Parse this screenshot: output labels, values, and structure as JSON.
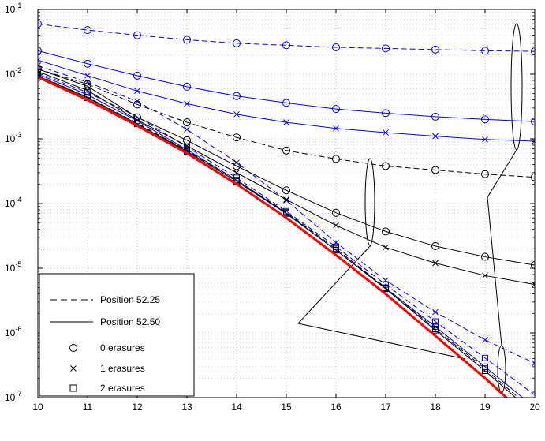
{
  "chart_data": {
    "type": "line",
    "title": "",
    "xlabel": "",
    "ylabel": "",
    "xlim": [
      10,
      20
    ],
    "ylim": [
      1e-07,
      0.1
    ],
    "yscale": "log",
    "grid": true,
    "x": [
      10,
      11,
      12,
      13,
      14,
      15,
      16,
      17,
      18,
      19,
      20
    ],
    "xticks": [
      "10",
      "11",
      "12",
      "13",
      "14",
      "15",
      "16",
      "17",
      "18",
      "19",
      "20"
    ],
    "yticks": [
      {
        "base": "10",
        "exp": "-7",
        "value": 1e-07
      },
      {
        "base": "10",
        "exp": "-6",
        "value": 1e-06
      },
      {
        "base": "10",
        "exp": "-5",
        "value": 1e-05
      },
      {
        "base": "10",
        "exp": "-4",
        "value": 0.0001
      },
      {
        "base": "10",
        "exp": "-3",
        "value": 0.001
      },
      {
        "base": "10",
        "exp": "-2",
        "value": 0.01
      },
      {
        "base": "10",
        "exp": "-1",
        "value": 0.1
      }
    ],
    "legend": {
      "placement": "bottom-left",
      "entries": [
        {
          "label": "Position 52.25",
          "line": "dashed"
        },
        {
          "label": "Position 52.50",
          "line": "solid"
        },
        {
          "label": "0 erasures",
          "marker": "circle"
        },
        {
          "label": "1 erasures",
          "marker": "x"
        },
        {
          "label": "2 erasures",
          "marker": "square"
        }
      ]
    },
    "series": [
      {
        "color": "#0000ff",
        "dash": true,
        "marker": "circle",
        "values": [
          0.06,
          0.048,
          0.04,
          0.034,
          0.03,
          0.028,
          0.026,
          0.025,
          0.024,
          0.023,
          0.0225
        ]
      },
      {
        "color": "#0000ff",
        "dash": false,
        "marker": "circle",
        "values": [
          0.023,
          0.0145,
          0.0095,
          0.0064,
          0.0046,
          0.0036,
          0.0029,
          0.0025,
          0.0022,
          0.002,
          0.00185
        ]
      },
      {
        "color": "#0000ff",
        "dash": false,
        "marker": "x",
        "values": [
          0.0165,
          0.0095,
          0.0055,
          0.0035,
          0.0024,
          0.0018,
          0.00145,
          0.00125,
          0.0011,
          0.00098,
          0.00092
        ]
      },
      {
        "color": "#0000ff",
        "dash": true,
        "marker": "x",
        "values": [
          0.0135,
          0.0075,
          0.0038,
          0.0014,
          0.00043,
          0.000112,
          2.5e-05,
          6.5e-06,
          2.1e-06,
          7.8e-07,
          3.4e-07
        ]
      },
      {
        "color": "#0000ff",
        "dash": true,
        "marker": "square",
        "values": [
          0.0105,
          0.0052,
          0.0022,
          0.00075,
          0.00025,
          7.6e-05,
          2.15e-05,
          5.6e-06,
          1.5e-06,
          4.1e-07,
          1.1e-07
        ]
      },
      {
        "color": "#0000ff",
        "dash": false,
        "marker": "square",
        "values": [
          0.01,
          0.0048,
          0.0019,
          0.00068,
          0.00023,
          7.1e-05,
          1.9e-05,
          4.9e-06,
          1.25e-06,
          3e-07,
          7e-08
        ]
      },
      {
        "color": "#000000",
        "dash": true,
        "marker": "circle",
        "values": [
          0.012,
          0.007,
          0.0034,
          0.0018,
          0.00105,
          0.00066,
          0.00049,
          0.00038,
          0.00033,
          0.000285,
          0.000255
        ]
      },
      {
        "color": "#000000",
        "dash": false,
        "marker": "circle",
        "values": [
          0.012,
          0.0065,
          0.00215,
          0.00095,
          0.00038,
          0.00016,
          7.2e-05,
          3.7e-05,
          2.2e-05,
          1.5e-05,
          1.12e-05
        ]
      },
      {
        "color": "#000000",
        "dash": false,
        "marker": "x",
        "values": [
          0.011,
          0.0056,
          0.00195,
          0.00078,
          0.0003,
          0.000115,
          4.6e-05,
          2.1e-05,
          1.2e-05,
          7.7e-06,
          5.6e-06
        ]
      },
      {
        "color": "#000000",
        "dash": true,
        "marker": "square",
        "values": [
          0.0096,
          0.0044,
          0.00175,
          0.00066,
          0.00023,
          7.3e-05,
          2e-05,
          5e-06,
          1.15e-06,
          2.8e-07,
          6e-08
        ]
      },
      {
        "color": "#000000",
        "dash": false,
        "marker": "square",
        "values": [
          0.0094,
          0.0043,
          0.0017,
          0.00064,
          0.00022,
          7e-05,
          1.9e-05,
          4.8e-06,
          1.1e-06,
          2.6e-07,
          5.5e-08
        ]
      },
      {
        "color": "#ff0000",
        "dash": false,
        "marker": "none",
        "width": 3,
        "values": [
          0.009,
          0.004,
          0.0016,
          0.0006,
          0.0002,
          6e-05,
          1.6e-05,
          4e-06,
          9e-07,
          2e-07,
          4e-08
        ]
      }
    ]
  }
}
